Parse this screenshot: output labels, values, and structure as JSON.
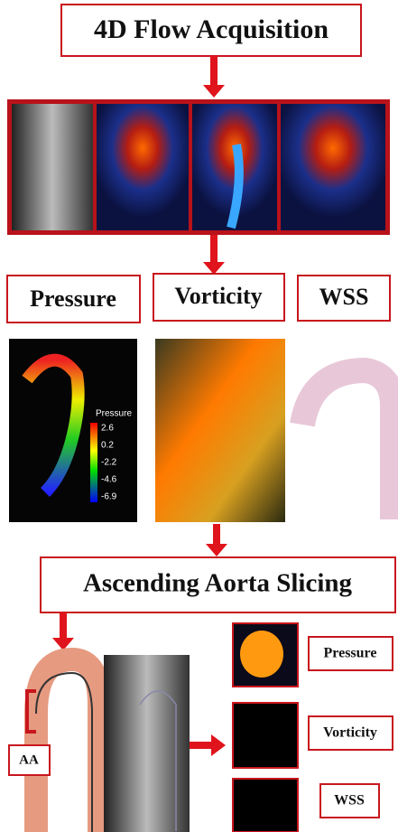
{
  "header": {
    "title": "4D Flow Acquisition"
  },
  "metrics": {
    "labels": [
      "Pressure",
      "Vorticity",
      "WSS"
    ]
  },
  "pressure_colorbar": {
    "title": "Pressure",
    "ticks": [
      "2.6",
      "0.2",
      "-2.2",
      "-4.6",
      "-6.9"
    ]
  },
  "slicing": {
    "title": "Ascending Aorta Slicing",
    "region": "AA",
    "outputs": [
      "Pressure",
      "Vorticity",
      "WSS"
    ]
  }
}
